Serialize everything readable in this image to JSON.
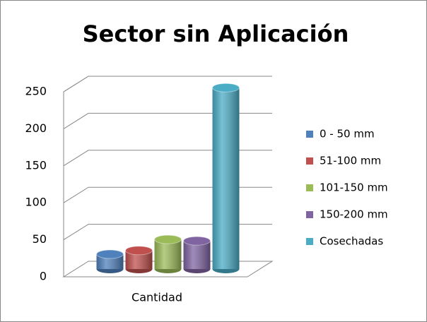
{
  "chart_data": {
    "type": "bar",
    "title": "Sector sin Aplicación",
    "categories": [
      "Cantidad"
    ],
    "series": [
      {
        "name": "0 - 50 mm",
        "color": "#4f81bd",
        "values": [
          20
        ]
      },
      {
        "name": "51-100 mm",
        "color": "#c0504d",
        "values": [
          25
        ]
      },
      {
        "name": "101-150 mm",
        "color": "#9bbb59",
        "values": [
          40
        ]
      },
      {
        "name": "150-200 mm",
        "color": "#8064a2",
        "values": [
          38
        ]
      },
      {
        "name": "Cosechadas",
        "color": "#4bacc6",
        "values": [
          245
        ]
      }
    ],
    "ylim": [
      0,
      250
    ],
    "yticks": [
      0,
      50,
      100,
      150,
      200,
      250
    ],
    "grid": true,
    "legend": "right"
  }
}
